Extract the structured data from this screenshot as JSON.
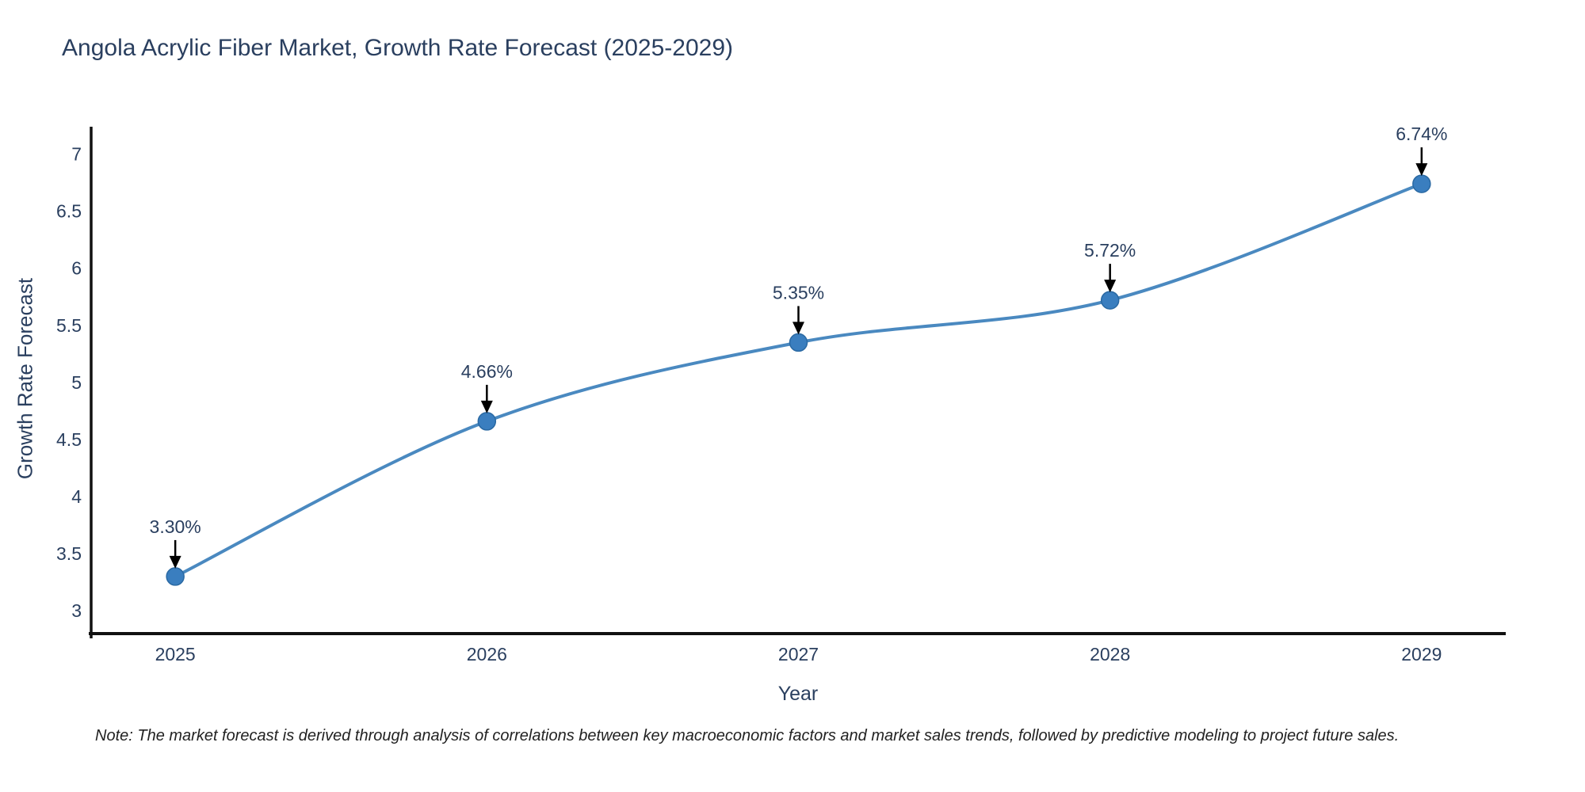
{
  "chart_data": {
    "type": "line",
    "title": "Angola Acrylic Fiber Market, Growth Rate Forecast (2025-2029)",
    "xlabel": "Year",
    "ylabel": "Growth Rate Forecast",
    "x": [
      2025,
      2026,
      2027,
      2028,
      2029
    ],
    "values": [
      3.3,
      4.66,
      5.35,
      5.72,
      6.74
    ],
    "point_labels": [
      "3.30%",
      "4.66%",
      "5.35%",
      "5.72%",
      "6.74%"
    ],
    "xticks": [
      2025,
      2026,
      2027,
      2028,
      2029
    ],
    "yticks": [
      3,
      3.5,
      4,
      4.5,
      5,
      5.5,
      6,
      6.5,
      7
    ],
    "xlim": [
      2024.73,
      2029.27
    ],
    "ylim": [
      2.8,
      7.24
    ],
    "grid": false,
    "legend": false,
    "line_shape": "spline",
    "note": "Note: The market forecast is derived through analysis of correlations between key macroeconomic factors and market sales trends, followed by predictive modeling to project future sales.",
    "colors": {
      "line": "#4a89c0",
      "marker": "#3a7ebf",
      "marker_border": "#2a69a3",
      "axis": "#111111",
      "text": "#2a3f5f",
      "arrow": "#000000",
      "note_text": "#222222",
      "background": "#ffffff"
    }
  }
}
